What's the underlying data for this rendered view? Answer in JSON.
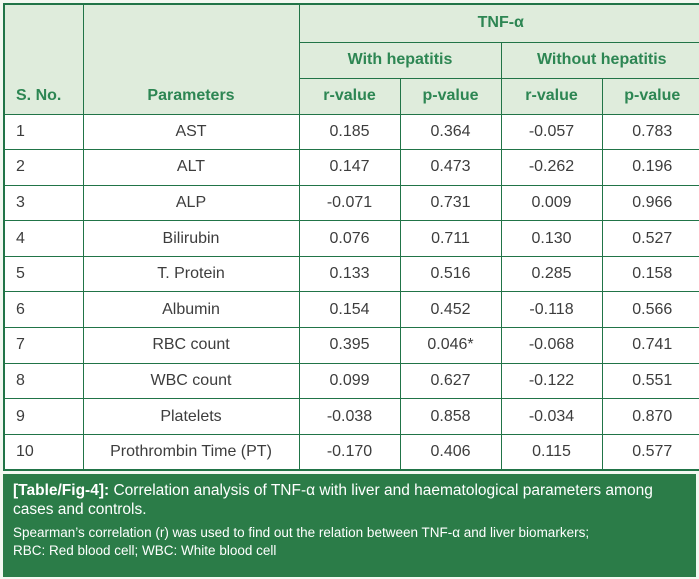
{
  "colors": {
    "page_bg": "#f3f8f1",
    "header_bg": "#dfecdc",
    "header_text": "#2d8653",
    "border": "#217447",
    "cell_bg": "#ffffff",
    "cell_text": "#3d3d3d",
    "footer_bg": "#2b7c48",
    "footer_text": "#ffffff"
  },
  "table": {
    "group_header": "TNF-α",
    "subgroups": [
      {
        "label": "With hepatitis"
      },
      {
        "label": "Without hepatitis"
      }
    ],
    "corner_headers": {
      "sno": "S. No.",
      "parameters": "Parameters"
    },
    "value_columns": [
      "r-value",
      "p-value",
      "r-value",
      "p-value"
    ],
    "rows": [
      {
        "sno": "1",
        "parameter": "AST",
        "wh_r": "0.185",
        "wh_p": "0.364",
        "woh_r": "-0.057",
        "woh_p": "0.783"
      },
      {
        "sno": "2",
        "parameter": "ALT",
        "wh_r": "0.147",
        "wh_p": "0.473",
        "woh_r": "-0.262",
        "woh_p": "0.196"
      },
      {
        "sno": "3",
        "parameter": "ALP",
        "wh_r": "-0.071",
        "wh_p": "0.731",
        "woh_r": "0.009",
        "woh_p": "0.966"
      },
      {
        "sno": "4",
        "parameter": "Bilirubin",
        "wh_r": "0.076",
        "wh_p": "0.711",
        "woh_r": "0.130",
        "woh_p": "0.527"
      },
      {
        "sno": "5",
        "parameter": "T. Protein",
        "wh_r": "0.133",
        "wh_p": "0.516",
        "woh_r": "0.285",
        "woh_p": "0.158"
      },
      {
        "sno": "6",
        "parameter": "Albumin",
        "wh_r": "0.154",
        "wh_p": "0.452",
        "woh_r": "-0.118",
        "woh_p": "0.566"
      },
      {
        "sno": "7",
        "parameter": "RBC count",
        "wh_r": "0.395",
        "wh_p": "0.046*",
        "woh_r": "-0.068",
        "woh_p": "0.741"
      },
      {
        "sno": "8",
        "parameter": "WBC count",
        "wh_r": "0.099",
        "wh_p": "0.627",
        "woh_r": "-0.122",
        "woh_p": "0.551"
      },
      {
        "sno": "9",
        "parameter": "Platelets",
        "wh_r": "-0.038",
        "wh_p": "0.858",
        "woh_r": "-0.034",
        "woh_p": "0.870"
      },
      {
        "sno": "10",
        "parameter": "Prothrombin Time (PT)",
        "wh_r": "-0.170",
        "wh_p": "0.406",
        "woh_r": "0.115",
        "woh_p": "0.577"
      }
    ]
  },
  "caption": {
    "label": "[Table/Fig-4]:",
    "text": " Correlation analysis of TNF-α with liver and haematological parameters among cases and controls.",
    "note1": "Spearman’s correlation (r) was used to find out the relation between TNF-α and liver biomarkers;",
    "note2": "RBC: Red blood cell; WBC: White blood cell"
  }
}
